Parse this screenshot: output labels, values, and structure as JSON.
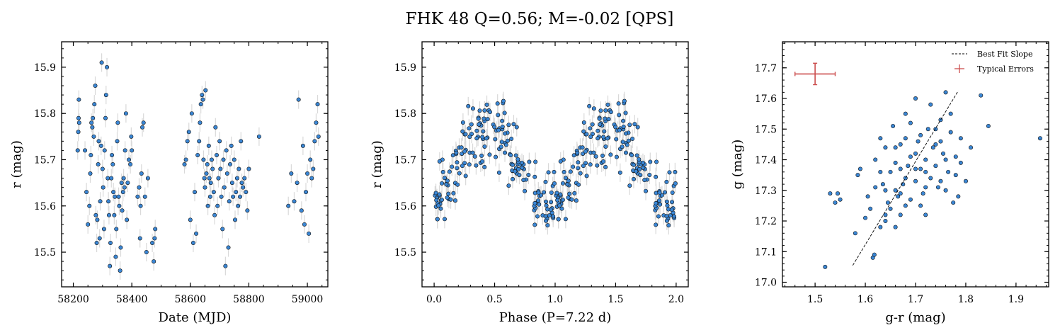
{
  "figure": {
    "title": "FHK 48  Q=0.56; M=-0.02 [QPS]"
  },
  "colors": {
    "point_fill": "#3a86d4",
    "point_edge": "#111111",
    "errorbar": "#d9d9d9",
    "fit_line": "#000000",
    "typical_error": "#cc4f4f"
  },
  "chart_data": [
    {
      "id": "light-curve",
      "type": "scatter",
      "xlabel": "Date (MJD)",
      "ylabel": "r (mag)",
      "xlim": [
        58160,
        59070
      ],
      "ylim": [
        15.955,
        15.425
      ],
      "y_inverted": true,
      "xticks": [
        58200,
        58400,
        58600,
        58800,
        59000
      ],
      "xtick_labels": [
        "58200",
        "58400",
        "58600",
        "58800",
        "59000"
      ],
      "yticks": [
        15.5,
        15.6,
        15.7,
        15.8,
        15.9
      ],
      "ytick_labels": [
        "15.5",
        "15.6",
        "15.7",
        "15.8",
        "15.9"
      ],
      "x_minor_step": 50,
      "y_minor_step": 0.02,
      "y_err": 0.02,
      "points": [
        [
          58215,
          15.72
        ],
        [
          58217,
          15.76
        ],
        [
          58218,
          15.79
        ],
        [
          58219,
          15.83
        ],
        [
          58220,
          15.78
        ],
        [
          58240,
          15.72
        ],
        [
          58245,
          15.63
        ],
        [
          58250,
          15.56
        ],
        [
          58255,
          15.6
        ],
        [
          58258,
          15.67
        ],
        [
          58260,
          15.71
        ],
        [
          58262,
          15.78
        ],
        [
          58265,
          15.77
        ],
        [
          58267,
          15.79
        ],
        [
          58270,
          15.75
        ],
        [
          58272,
          15.82
        ],
        [
          58275,
          15.86
        ],
        [
          58277,
          15.58
        ],
        [
          58280,
          15.52
        ],
        [
          58282,
          15.57
        ],
        [
          58285,
          15.69
        ],
        [
          58287,
          15.74
        ],
        [
          58290,
          15.53
        ],
        [
          58292,
          15.61
        ],
        [
          58295,
          15.73
        ],
        [
          58297,
          15.91
        ],
        [
          58300,
          15.68
        ],
        [
          58302,
          15.64
        ],
        [
          58305,
          15.55
        ],
        [
          58307,
          15.72
        ],
        [
          58310,
          15.79
        ],
        [
          58312,
          15.84
        ],
        [
          58315,
          15.9
        ],
        [
          58318,
          15.66
        ],
        [
          58320,
          15.61
        ],
        [
          58322,
          15.58
        ],
        [
          58325,
          15.47
        ],
        [
          58327,
          15.52
        ],
        [
          58330,
          15.66
        ],
        [
          58332,
          15.71
        ],
        [
          58335,
          15.69
        ],
        [
          58337,
          15.63
        ],
        [
          58340,
          15.58
        ],
        [
          58342,
          15.62
        ],
        [
          58345,
          15.49
        ],
        [
          58347,
          15.55
        ],
        [
          58350,
          15.74
        ],
        [
          58352,
          15.78
        ],
        [
          58355,
          15.62
        ],
        [
          58357,
          15.6
        ],
        [
          58360,
          15.46
        ],
        [
          58362,
          15.51
        ],
        [
          58365,
          15.65
        ],
        [
          58367,
          15.59
        ],
        [
          58370,
          15.63
        ],
        [
          58372,
          15.66
        ],
        [
          58375,
          15.64
        ],
        [
          58377,
          15.72
        ],
        [
          58380,
          15.8
        ],
        [
          58383,
          15.57
        ],
        [
          58386,
          15.65
        ],
        [
          58390,
          15.7
        ],
        [
          58395,
          15.69
        ],
        [
          58398,
          15.75
        ],
        [
          58400,
          15.72
        ],
        [
          58420,
          15.62
        ],
        [
          58425,
          15.64
        ],
        [
          58428,
          15.53
        ],
        [
          58430,
          15.6
        ],
        [
          58433,
          15.67
        ],
        [
          58436,
          15.77
        ],
        [
          58440,
          15.78
        ],
        [
          58445,
          15.62
        ],
        [
          58450,
          15.5
        ],
        [
          58455,
          15.66
        ],
        [
          58470,
          15.52
        ],
        [
          58475,
          15.48
        ],
        [
          58478,
          15.53
        ],
        [
          58480,
          15.55
        ],
        [
          58580,
          15.69
        ],
        [
          58585,
          15.7
        ],
        [
          58590,
          15.74
        ],
        [
          58595,
          15.76
        ],
        [
          58600,
          15.57
        ],
        [
          58605,
          15.8
        ],
        [
          58610,
          15.52
        ],
        [
          58615,
          15.63
        ],
        [
          58620,
          15.54
        ],
        [
          58625,
          15.71
        ],
        [
          58630,
          15.74
        ],
        [
          58633,
          15.78
        ],
        [
          58636,
          15.82
        ],
        [
          58640,
          15.84
        ],
        [
          58643,
          15.83
        ],
        [
          58645,
          15.7
        ],
        [
          58648,
          15.66
        ],
        [
          58650,
          15.64
        ],
        [
          58652,
          15.85
        ],
        [
          58655,
          15.67
        ],
        [
          58658,
          15.69
        ],
        [
          58660,
          15.6
        ],
        [
          58663,
          15.73
        ],
        [
          58665,
          15.66
        ],
        [
          58668,
          15.62
        ],
        [
          58670,
          15.65
        ],
        [
          58673,
          15.7
        ],
        [
          58676,
          15.68
        ],
        [
          58680,
          15.63
        ],
        [
          58683,
          15.58
        ],
        [
          58686,
          15.77
        ],
        [
          58690,
          15.71
        ],
        [
          58693,
          15.6
        ],
        [
          58696,
          15.66
        ],
        [
          58700,
          15.74
        ],
        [
          58703,
          15.68
        ],
        [
          58706,
          15.62
        ],
        [
          58710,
          15.55
        ],
        [
          58713,
          15.7
        ],
        [
          58716,
          15.64
        ],
        [
          58720,
          15.47
        ],
        [
          58723,
          15.72
        ],
        [
          58726,
          15.67
        ],
        [
          58730,
          15.51
        ],
        [
          58733,
          15.61
        ],
        [
          58736,
          15.69
        ],
        [
          58740,
          15.73
        ],
        [
          58743,
          15.65
        ],
        [
          58746,
          15.62
        ],
        [
          58750,
          15.7
        ],
        [
          58753,
          15.57
        ],
        [
          58756,
          15.63
        ],
        [
          58760,
          15.66
        ],
        [
          58763,
          15.6
        ],
        [
          58766,
          15.68
        ],
        [
          58770,
          15.62
        ],
        [
          58773,
          15.74
        ],
        [
          58776,
          15.65
        ],
        [
          58780,
          15.64
        ],
        [
          58785,
          15.66
        ],
        [
          58790,
          15.63
        ],
        [
          58795,
          15.59
        ],
        [
          58800,
          15.68
        ],
        [
          58835,
          15.75
        ],
        [
          58935,
          15.6
        ],
        [
          58945,
          15.67
        ],
        [
          58955,
          15.61
        ],
        [
          58965,
          15.65
        ],
        [
          58970,
          15.83
        ],
        [
          58980,
          15.59
        ],
        [
          58985,
          15.73
        ],
        [
          58990,
          15.56
        ],
        [
          58995,
          15.63
        ],
        [
          59000,
          15.67
        ],
        [
          59005,
          15.54
        ],
        [
          59010,
          15.7
        ],
        [
          59015,
          15.66
        ],
        [
          59020,
          15.68
        ],
        [
          59025,
          15.74
        ],
        [
          59030,
          15.78
        ],
        [
          59035,
          15.82
        ],
        [
          59038,
          15.75
        ]
      ]
    },
    {
      "id": "phase-curve",
      "type": "scatter",
      "xlabel": "Phase (P=7.22 d)",
      "ylabel": "r (mag)",
      "xlim": [
        -0.1,
        2.1
      ],
      "ylim": [
        15.955,
        15.425
      ],
      "y_inverted": true,
      "xticks": [
        0.0,
        0.5,
        1.0,
        1.5,
        2.0
      ],
      "xtick_labels": [
        "0.0",
        "0.5",
        "1.0",
        "1.5",
        "2.0"
      ],
      "yticks": [
        15.5,
        15.6,
        15.7,
        15.8,
        15.9
      ],
      "ytick_labels": [
        "15.5",
        "15.6",
        "15.7",
        "15.8",
        "15.9"
      ],
      "x_minor_step": 0.1,
      "y_minor_step": 0.02,
      "y_err": 0.02,
      "phase_profile": {
        "mean": 15.69,
        "amplitude": 0.085,
        "peak_phase": 0.95,
        "scatter": 0.055,
        "points_per_cycle": 190,
        "cycles": 2
      }
    },
    {
      "id": "color-magnitude",
      "type": "scatter",
      "xlabel": "g-r (mag)",
      "ylabel": "g (mag)",
      "xlim": [
        1.435,
        1.965
      ],
      "ylim": [
        17.785,
        16.985
      ],
      "y_inverted": true,
      "xticks": [
        1.5,
        1.6,
        1.7,
        1.8,
        1.9
      ],
      "xtick_labels": [
        "1.5",
        "1.6",
        "1.7",
        "1.8",
        "1.9"
      ],
      "yticks": [
        17.0,
        17.1,
        17.2,
        17.3,
        17.4,
        17.5,
        17.6,
        17.7
      ],
      "ytick_labels": [
        "17.0",
        "17.1",
        "17.2",
        "17.3",
        "17.4",
        "17.5",
        "17.6",
        "17.7"
      ],
      "x_minor_step": 0.02,
      "y_minor_step": 0.02,
      "legend": {
        "position": "upper right",
        "entries": [
          "Best Fit Slope",
          "Typical Errors"
        ]
      },
      "best_fit_line": {
        "x": [
          1.575,
          1.785
        ],
        "y": [
          17.055,
          17.625
        ]
      },
      "typical_error": {
        "x": 1.5,
        "y": 17.68,
        "x_err": 0.04,
        "y_err": 0.035
      },
      "points": [
        [
          1.52,
          17.05
        ],
        [
          1.53,
          17.29
        ],
        [
          1.54,
          17.26
        ],
        [
          1.55,
          17.27
        ],
        [
          1.545,
          17.29
        ],
        [
          1.58,
          17.16
        ],
        [
          1.585,
          17.35
        ],
        [
          1.59,
          17.37
        ],
        [
          1.6,
          17.21
        ],
        [
          1.605,
          17.28
        ],
        [
          1.61,
          17.24
        ],
        [
          1.62,
          17.31
        ],
        [
          1.615,
          17.08
        ],
        [
          1.618,
          17.09
        ],
        [
          1.63,
          17.18
        ],
        [
          1.635,
          17.32
        ],
        [
          1.64,
          17.2
        ],
        [
          1.64,
          17.44
        ],
        [
          1.645,
          17.26
        ],
        [
          1.65,
          17.36
        ],
        [
          1.655,
          17.51
        ],
        [
          1.66,
          17.18
        ],
        [
          1.66,
          17.39
        ],
        [
          1.665,
          17.28
        ],
        [
          1.67,
          17.22
        ],
        [
          1.67,
          17.45
        ],
        [
          1.675,
          17.32
        ],
        [
          1.68,
          17.55
        ],
        [
          1.685,
          17.38
        ],
        [
          1.69,
          17.27
        ],
        [
          1.69,
          17.41
        ],
        [
          1.7,
          17.33
        ],
        [
          1.7,
          17.6
        ],
        [
          1.705,
          17.46
        ],
        [
          1.71,
          17.37
        ],
        [
          1.715,
          17.29
        ],
        [
          1.72,
          17.4
        ],
        [
          1.72,
          17.22
        ],
        [
          1.725,
          17.5
        ],
        [
          1.73,
          17.34
        ],
        [
          1.735,
          17.44
        ],
        [
          1.74,
          17.38
        ],
        [
          1.745,
          17.31
        ],
        [
          1.75,
          17.46
        ],
        [
          1.755,
          17.42
        ],
        [
          1.76,
          17.62
        ],
        [
          1.765,
          17.36
        ],
        [
          1.77,
          17.49
        ],
        [
          1.775,
          17.26
        ],
        [
          1.78,
          17.41
        ],
        [
          1.785,
          17.28
        ],
        [
          1.79,
          17.39
        ],
        [
          1.8,
          17.33
        ],
        [
          1.81,
          17.44
        ],
        [
          1.83,
          17.61
        ],
        [
          1.845,
          17.51
        ],
        [
          1.948,
          17.47
        ],
        [
          1.62,
          17.4
        ],
        [
          1.63,
          17.47
        ],
        [
          1.64,
          17.22
        ],
        [
          1.66,
          17.3
        ],
        [
          1.68,
          17.34
        ],
        [
          1.68,
          17.25
        ],
        [
          1.7,
          17.37
        ],
        [
          1.71,
          17.48
        ],
        [
          1.72,
          17.36
        ],
        [
          1.74,
          17.5
        ],
        [
          1.75,
          17.33
        ],
        [
          1.76,
          17.4
        ],
        [
          1.77,
          17.55
        ],
        [
          1.66,
          17.44
        ],
        [
          1.69,
          17.52
        ],
        [
          1.73,
          17.58
        ],
        [
          1.76,
          17.3
        ],
        [
          1.65,
          17.24
        ],
        [
          1.67,
          17.29
        ],
        [
          1.7,
          17.42
        ],
        [
          1.72,
          17.31
        ],
        [
          1.74,
          17.45
        ],
        [
          1.63,
          17.36
        ],
        [
          1.75,
          17.53
        ],
        [
          1.71,
          17.25
        ],
        [
          1.68,
          17.47
        ],
        [
          1.78,
          17.35
        ],
        [
          1.79,
          17.47
        ],
        [
          1.64,
          17.3
        ],
        [
          1.67,
          17.37
        ]
      ]
    }
  ]
}
